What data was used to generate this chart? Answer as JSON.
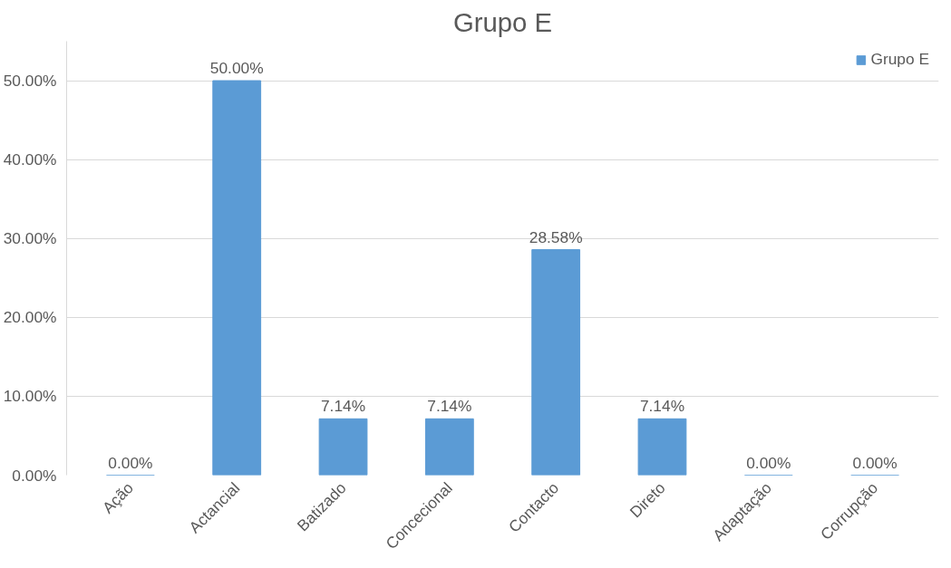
{
  "chart_data": {
    "type": "bar",
    "title": "Grupo E",
    "categories": [
      "Ação",
      "Actancial",
      "Batizado",
      "Concecional",
      "Contacto",
      "Direto",
      "Adaptação",
      "Corrupção"
    ],
    "series": [
      {
        "name": "Grupo E",
        "color": "#5b9bd5",
        "values": [
          0,
          50,
          7.14,
          7.14,
          28.58,
          7.14,
          0,
          0
        ],
        "value_labels": [
          "0.00%",
          "50.00%",
          "7.14%",
          "7.14%",
          "28.58%",
          "7.14%",
          "0.00%",
          "0.00%"
        ]
      }
    ],
    "ylim": [
      0,
      55
    ],
    "yticks": [
      {
        "value": 0,
        "label": "0.00%"
      },
      {
        "value": 10,
        "label": "10.00%"
      },
      {
        "value": 20,
        "label": "20.00%"
      },
      {
        "value": 30,
        "label": "30.00%"
      },
      {
        "value": 40,
        "label": "40.00%"
      },
      {
        "value": 50,
        "label": "50.00%"
      }
    ],
    "grid": "y",
    "legend": "top right"
  }
}
